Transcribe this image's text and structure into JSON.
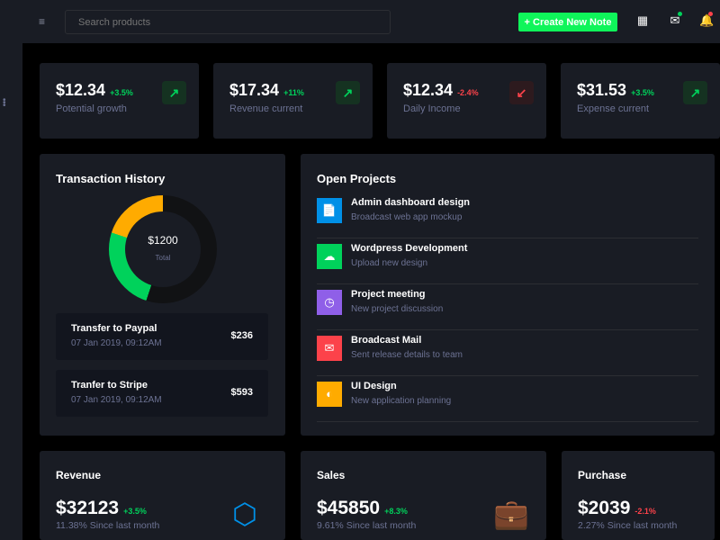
{
  "header": {
    "search_placeholder": "Search products",
    "create_label": "+ Create New Note"
  },
  "stats": [
    {
      "value": "$12.34",
      "change": "+3.5%",
      "dir": "up",
      "label": "Potential growth"
    },
    {
      "value": "$17.34",
      "change": "+11%",
      "dir": "up",
      "label": "Revenue current"
    },
    {
      "value": "$12.34",
      "change": "-2.4%",
      "dir": "down",
      "label": "Daily Income"
    },
    {
      "value": "$31.53",
      "change": "+3.5%",
      "dir": "up",
      "label": "Expense current"
    }
  ],
  "transactions": {
    "title": "Transaction History",
    "total": "$1200",
    "total_label": "Total",
    "segments": [
      {
        "name": "orange",
        "value": 20,
        "color": "#ffab00"
      },
      {
        "name": "green",
        "value": 25,
        "color": "#00d25b"
      },
      {
        "name": "rest",
        "value": 55,
        "color": "#111214"
      }
    ],
    "items": [
      {
        "title": "Transfer to Paypal",
        "date": "07 Jan 2019, 09:12AM",
        "amount": "$236"
      },
      {
        "title": "Tranfer to Stripe",
        "date": "07 Jan 2019, 09:12AM",
        "amount": "$593"
      }
    ]
  },
  "projects": {
    "title": "Open Projects",
    "items": [
      {
        "title": "Admin dashboard design",
        "sub": "Broadcast web app mockup",
        "color": "#0090e7",
        "icon": "file-icon"
      },
      {
        "title": "Wordpress Development",
        "sub": "Upload new design",
        "color": "#00d25b",
        "icon": "cloud-download-icon"
      },
      {
        "title": "Project meeting",
        "sub": "New project discussion",
        "color": "#8f5fe8",
        "icon": "clock-icon"
      },
      {
        "title": "Broadcast Mail",
        "sub": "Sent release details to team",
        "color": "#fc424a",
        "icon": "mail-open-icon"
      },
      {
        "title": "UI Design",
        "sub": "New application planning",
        "color": "#ffab00",
        "icon": "chart-pie-icon"
      }
    ]
  },
  "bottom": [
    {
      "title": "Revenue",
      "value": "$32123",
      "change": "+3.5%",
      "dir": "up",
      "since": "11.38% Since last month"
    },
    {
      "title": "Sales",
      "value": "$45850",
      "change": "+8.3%",
      "dir": "up",
      "since": "9.61% Since last month"
    },
    {
      "title": "Purchase",
      "value": "$2039",
      "change": "-2.1%",
      "dir": "down",
      "since": "2.27% Since last month"
    }
  ]
}
